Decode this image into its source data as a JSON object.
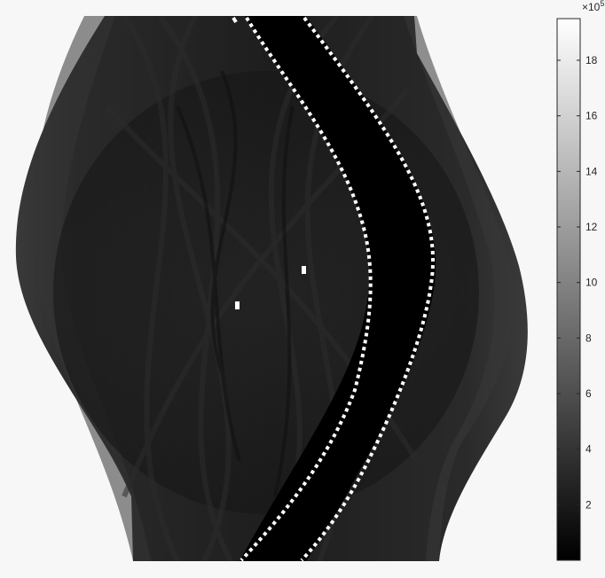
{
  "image": {
    "description_type": "sinogram-intensity-image",
    "background_color": "#f7f7f7",
    "panel_color": "#000000",
    "marker_color": "#ffffff"
  },
  "colorbar": {
    "multiplier_base": "×10",
    "multiplier_exponent": "5",
    "min": 0,
    "max": 19.5,
    "ticks": [
      {
        "value": 2,
        "label": "2"
      },
      {
        "value": 4,
        "label": "4"
      },
      {
        "value": 6,
        "label": "6"
      },
      {
        "value": 8,
        "label": "8"
      },
      {
        "value": 10,
        "label": "10"
      },
      {
        "value": 12,
        "label": "12"
      },
      {
        "value": 14,
        "label": "14"
      },
      {
        "value": 16,
        "label": "16"
      },
      {
        "value": 18,
        "label": "18"
      }
    ],
    "colormap": "gray",
    "colormap_start": "#000000",
    "colormap_end": "#ffffff"
  }
}
